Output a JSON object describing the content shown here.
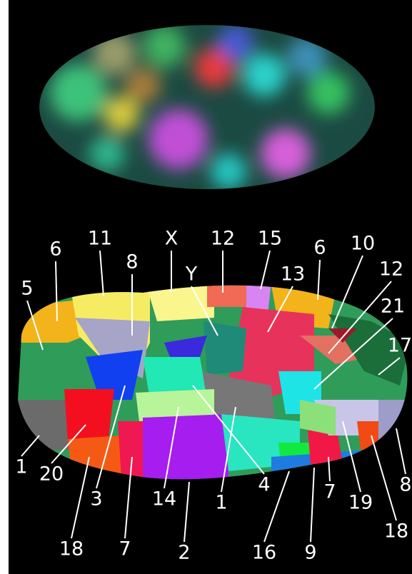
{
  "labels": [
    "6",
    "11",
    "X",
    "12",
    "15",
    "6",
    "10",
    "8",
    "5",
    "Y",
    "13",
    "12",
    "21",
    "17",
    "1",
    "20",
    "3",
    "14",
    "1",
    "4",
    "19",
    "8",
    "18",
    "7",
    "2",
    "16",
    "9",
    "7",
    "18"
  ]
}
